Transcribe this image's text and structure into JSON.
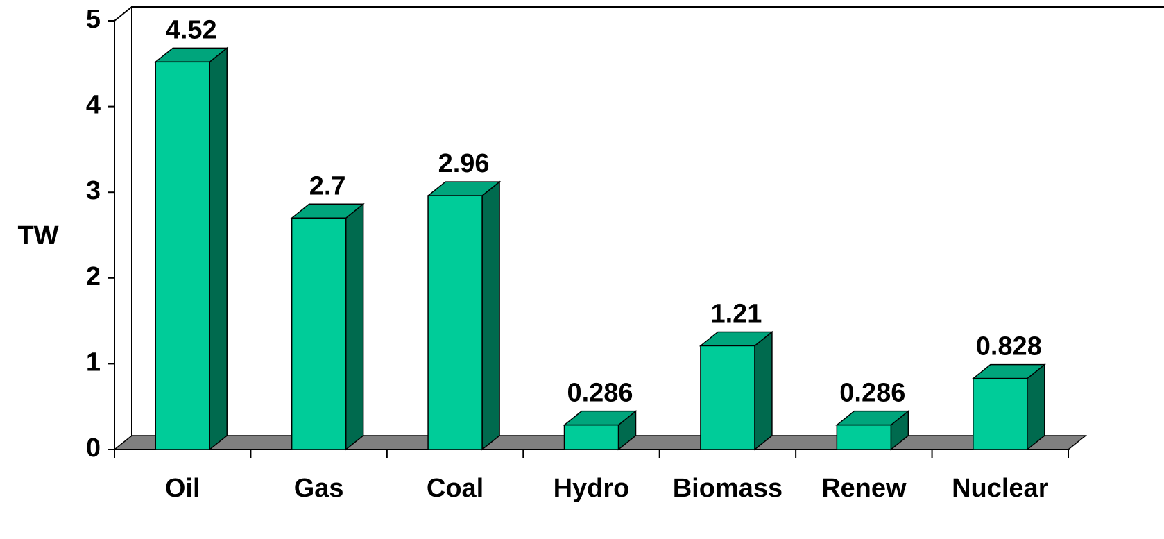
{
  "chart_data": {
    "type": "bar3d",
    "y_axis_label": "TW",
    "categories": [
      "Oil",
      "Gas",
      "Coal",
      "Hydro",
      "Biomass",
      "Renew",
      "Nuclear"
    ],
    "values": [
      4.52,
      2.7,
      2.96,
      0.286,
      1.21,
      0.286,
      0.828
    ],
    "color": "#00cc99",
    "side_color": "#006a4e",
    "top_color": "#00a57c",
    "ylim": [
      0,
      5
    ],
    "yticks": [
      0,
      1,
      2,
      3,
      4,
      5
    ],
    "grid": false
  }
}
